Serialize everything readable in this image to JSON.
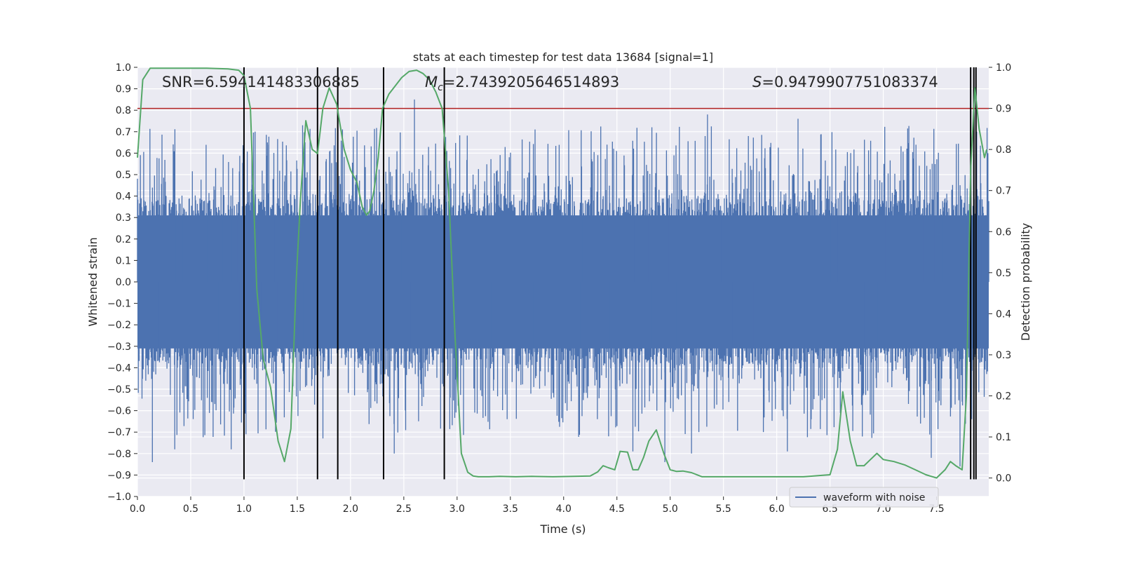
{
  "chart_data": {
    "type": "line",
    "title": "stats at each timestep for test data 13684 [signal=1]",
    "xlabel": "Time (s)",
    "ylabel": "Whitened strain",
    "y2label": "Detection probability",
    "xlim": [
      0.0,
      7.99
    ],
    "ylim": [
      -1.0,
      1.0
    ],
    "y2lim": [
      -0.045,
      1.0
    ],
    "x_ticks": [
      "0.0",
      "0.5",
      "1.0",
      "1.5",
      "2.0",
      "2.5",
      "3.0",
      "3.5",
      "4.0",
      "4.5",
      "5.0",
      "5.5",
      "6.0",
      "6.5",
      "7.0",
      "7.5"
    ],
    "y_ticks": [
      "-1.0",
      "-0.9",
      "-0.8",
      "-0.7",
      "-0.6",
      "-0.5",
      "-0.4",
      "-0.3",
      "-0.2",
      "-0.1",
      "0.0",
      "0.1",
      "0.2",
      "0.3",
      "0.4",
      "0.5",
      "0.6",
      "0.7",
      "0.8",
      "0.9",
      "1.0"
    ],
    "y2_ticks": [
      "0.0",
      "0.1",
      "0.2",
      "0.3",
      "0.4",
      "0.5",
      "0.6",
      "0.7",
      "0.8",
      "0.9",
      "1.0"
    ],
    "stats": {
      "snr": "SNR=6.594141483306885",
      "mc_symbol": "M",
      "mc_sub": "c",
      "mc_value": "=2.7439205646514893",
      "s_symbol": "S",
      "s_value": "=0.9479907751083374"
    },
    "legend": {
      "label": "waveform with noise",
      "placement": "lower-right"
    },
    "threshold": {
      "value": 0.9,
      "axis": "y2",
      "color": "#b22222"
    },
    "vertical_markers": {
      "x": [
        1.0,
        1.69,
        1.88,
        2.31,
        2.88,
        7.82,
        7.85,
        7.87
      ],
      "y_range": [
        -0.92,
        1.0
      ]
    },
    "waveform_series": {
      "name": "waveform with noise",
      "color": "#4c72b0",
      "sample_count": 2048,
      "core_amplitude": 0.31,
      "x_range": [
        0.0,
        7.99
      ],
      "peaks": [
        {
          "x": 0.14,
          "y": -0.84
        },
        {
          "x": 0.35,
          "y": -0.78
        },
        {
          "x": 0.88,
          "y": -0.78
        },
        {
          "x": 1.22,
          "y": 0.65
        },
        {
          "x": 1.55,
          "y": 0.73
        },
        {
          "x": 1.88,
          "y": -0.72
        },
        {
          "x": 2.6,
          "y": 0.85
        },
        {
          "x": 2.41,
          "y": -0.8
        },
        {
          "x": 4.65,
          "y": -0.79
        },
        {
          "x": 4.95,
          "y": -0.84
        },
        {
          "x": 5.2,
          "y": -0.8
        },
        {
          "x": 5.35,
          "y": 0.78
        },
        {
          "x": 6.1,
          "y": -0.79
        },
        {
          "x": 6.2,
          "y": 0.76
        },
        {
          "x": 7.45,
          "y": -0.82
        },
        {
          "x": 7.72,
          "y": -0.86
        }
      ]
    },
    "probability_series": {
      "name": "detection probability",
      "axis": "y2",
      "color": "#55a868",
      "x": [
        0.0,
        0.05,
        0.12,
        0.25,
        0.45,
        0.65,
        0.85,
        0.95,
        1.0,
        1.06,
        1.12,
        1.18,
        1.25,
        1.32,
        1.38,
        1.44,
        1.49,
        1.53,
        1.58,
        1.64,
        1.69,
        1.74,
        1.8,
        1.87,
        1.94,
        2.0,
        2.06,
        2.11,
        2.15,
        2.18,
        2.22,
        2.26,
        2.3,
        2.36,
        2.42,
        2.48,
        2.55,
        2.62,
        2.68,
        2.74,
        2.8,
        2.86,
        2.92,
        2.98,
        3.04,
        3.1,
        3.15,
        3.2,
        3.3,
        3.4,
        3.55,
        3.7,
        3.9,
        4.1,
        4.25,
        4.32,
        4.37,
        4.42,
        4.48,
        4.53,
        4.6,
        4.65,
        4.7,
        4.75,
        4.8,
        4.87,
        4.94,
        5.0,
        5.06,
        5.12,
        5.2,
        5.3,
        5.5,
        5.7,
        5.9,
        6.1,
        6.25,
        6.4,
        6.5,
        6.57,
        6.62,
        6.69,
        6.75,
        6.82,
        6.88,
        6.94,
        7.0,
        7.1,
        7.2,
        7.3,
        7.4,
        7.5,
        7.58,
        7.63,
        7.68,
        7.74,
        7.78,
        7.82,
        7.86,
        7.9,
        7.95,
        7.97
      ],
      "y": [
        0.78,
        0.97,
        0.998,
        0.998,
        0.998,
        0.998,
        0.996,
        0.993,
        0.98,
        0.9,
        0.46,
        0.29,
        0.22,
        0.09,
        0.04,
        0.12,
        0.48,
        0.68,
        0.87,
        0.8,
        0.79,
        0.9,
        0.95,
        0.91,
        0.8,
        0.75,
        0.72,
        0.66,
        0.64,
        0.65,
        0.7,
        0.78,
        0.9,
        0.935,
        0.955,
        0.975,
        0.99,
        0.993,
        0.985,
        0.97,
        0.94,
        0.9,
        0.7,
        0.35,
        0.06,
        0.014,
        0.005,
        0.003,
        0.003,
        0.004,
        0.003,
        0.004,
        0.003,
        0.004,
        0.005,
        0.015,
        0.03,
        0.025,
        0.02,
        0.065,
        0.063,
        0.02,
        0.02,
        0.05,
        0.09,
        0.117,
        0.06,
        0.02,
        0.016,
        0.017,
        0.013,
        0.003,
        0.003,
        0.003,
        0.003,
        0.003,
        0.003,
        0.006,
        0.008,
        0.07,
        0.21,
        0.09,
        0.03,
        0.03,
        0.045,
        0.06,
        0.045,
        0.04,
        0.032,
        0.02,
        0.008,
        0.0,
        0.02,
        0.04,
        0.03,
        0.02,
        0.2,
        0.75,
        0.95,
        0.85,
        0.78,
        0.8
      ]
    }
  }
}
